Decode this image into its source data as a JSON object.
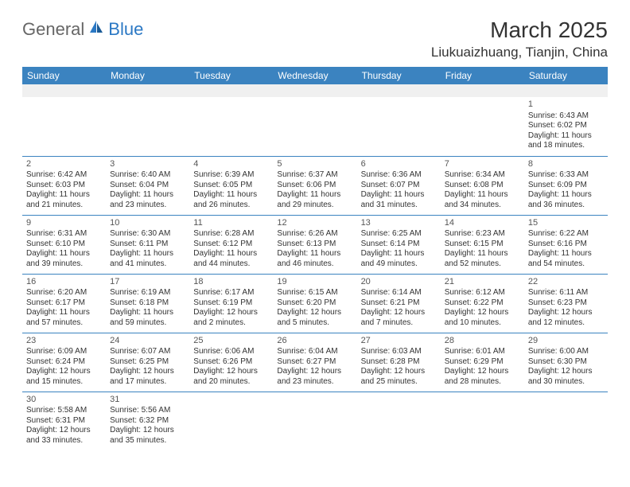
{
  "brand": {
    "part1": "General",
    "part2": "Blue"
  },
  "title": {
    "month": "March 2025",
    "location": "Liukuaizhuang, Tianjin, China"
  },
  "colors": {
    "header_bg": "#3b83c0",
    "header_text": "#ffffff",
    "border": "#3b83c0",
    "blank_bg": "#f0f0f0",
    "text": "#333333",
    "logo_gray": "#666666",
    "logo_blue": "#2b78c4"
  },
  "weekdays": [
    "Sunday",
    "Monday",
    "Tuesday",
    "Wednesday",
    "Thursday",
    "Friday",
    "Saturday"
  ],
  "days": {
    "1": {
      "sunrise": "Sunrise: 6:43 AM",
      "sunset": "Sunset: 6:02 PM",
      "daylight": "Daylight: 11 hours and 18 minutes."
    },
    "2": {
      "sunrise": "Sunrise: 6:42 AM",
      "sunset": "Sunset: 6:03 PM",
      "daylight": "Daylight: 11 hours and 21 minutes."
    },
    "3": {
      "sunrise": "Sunrise: 6:40 AM",
      "sunset": "Sunset: 6:04 PM",
      "daylight": "Daylight: 11 hours and 23 minutes."
    },
    "4": {
      "sunrise": "Sunrise: 6:39 AM",
      "sunset": "Sunset: 6:05 PM",
      "daylight": "Daylight: 11 hours and 26 minutes."
    },
    "5": {
      "sunrise": "Sunrise: 6:37 AM",
      "sunset": "Sunset: 6:06 PM",
      "daylight": "Daylight: 11 hours and 29 minutes."
    },
    "6": {
      "sunrise": "Sunrise: 6:36 AM",
      "sunset": "Sunset: 6:07 PM",
      "daylight": "Daylight: 11 hours and 31 minutes."
    },
    "7": {
      "sunrise": "Sunrise: 6:34 AM",
      "sunset": "Sunset: 6:08 PM",
      "daylight": "Daylight: 11 hours and 34 minutes."
    },
    "8": {
      "sunrise": "Sunrise: 6:33 AM",
      "sunset": "Sunset: 6:09 PM",
      "daylight": "Daylight: 11 hours and 36 minutes."
    },
    "9": {
      "sunrise": "Sunrise: 6:31 AM",
      "sunset": "Sunset: 6:10 PM",
      "daylight": "Daylight: 11 hours and 39 minutes."
    },
    "10": {
      "sunrise": "Sunrise: 6:30 AM",
      "sunset": "Sunset: 6:11 PM",
      "daylight": "Daylight: 11 hours and 41 minutes."
    },
    "11": {
      "sunrise": "Sunrise: 6:28 AM",
      "sunset": "Sunset: 6:12 PM",
      "daylight": "Daylight: 11 hours and 44 minutes."
    },
    "12": {
      "sunrise": "Sunrise: 6:26 AM",
      "sunset": "Sunset: 6:13 PM",
      "daylight": "Daylight: 11 hours and 46 minutes."
    },
    "13": {
      "sunrise": "Sunrise: 6:25 AM",
      "sunset": "Sunset: 6:14 PM",
      "daylight": "Daylight: 11 hours and 49 minutes."
    },
    "14": {
      "sunrise": "Sunrise: 6:23 AM",
      "sunset": "Sunset: 6:15 PM",
      "daylight": "Daylight: 11 hours and 52 minutes."
    },
    "15": {
      "sunrise": "Sunrise: 6:22 AM",
      "sunset": "Sunset: 6:16 PM",
      "daylight": "Daylight: 11 hours and 54 minutes."
    },
    "16": {
      "sunrise": "Sunrise: 6:20 AM",
      "sunset": "Sunset: 6:17 PM",
      "daylight": "Daylight: 11 hours and 57 minutes."
    },
    "17": {
      "sunrise": "Sunrise: 6:19 AM",
      "sunset": "Sunset: 6:18 PM",
      "daylight": "Daylight: 11 hours and 59 minutes."
    },
    "18": {
      "sunrise": "Sunrise: 6:17 AM",
      "sunset": "Sunset: 6:19 PM",
      "daylight": "Daylight: 12 hours and 2 minutes."
    },
    "19": {
      "sunrise": "Sunrise: 6:15 AM",
      "sunset": "Sunset: 6:20 PM",
      "daylight": "Daylight: 12 hours and 5 minutes."
    },
    "20": {
      "sunrise": "Sunrise: 6:14 AM",
      "sunset": "Sunset: 6:21 PM",
      "daylight": "Daylight: 12 hours and 7 minutes."
    },
    "21": {
      "sunrise": "Sunrise: 6:12 AM",
      "sunset": "Sunset: 6:22 PM",
      "daylight": "Daylight: 12 hours and 10 minutes."
    },
    "22": {
      "sunrise": "Sunrise: 6:11 AM",
      "sunset": "Sunset: 6:23 PM",
      "daylight": "Daylight: 12 hours and 12 minutes."
    },
    "23": {
      "sunrise": "Sunrise: 6:09 AM",
      "sunset": "Sunset: 6:24 PM",
      "daylight": "Daylight: 12 hours and 15 minutes."
    },
    "24": {
      "sunrise": "Sunrise: 6:07 AM",
      "sunset": "Sunset: 6:25 PM",
      "daylight": "Daylight: 12 hours and 17 minutes."
    },
    "25": {
      "sunrise": "Sunrise: 6:06 AM",
      "sunset": "Sunset: 6:26 PM",
      "daylight": "Daylight: 12 hours and 20 minutes."
    },
    "26": {
      "sunrise": "Sunrise: 6:04 AM",
      "sunset": "Sunset: 6:27 PM",
      "daylight": "Daylight: 12 hours and 23 minutes."
    },
    "27": {
      "sunrise": "Sunrise: 6:03 AM",
      "sunset": "Sunset: 6:28 PM",
      "daylight": "Daylight: 12 hours and 25 minutes."
    },
    "28": {
      "sunrise": "Sunrise: 6:01 AM",
      "sunset": "Sunset: 6:29 PM",
      "daylight": "Daylight: 12 hours and 28 minutes."
    },
    "29": {
      "sunrise": "Sunrise: 6:00 AM",
      "sunset": "Sunset: 6:30 PM",
      "daylight": "Daylight: 12 hours and 30 minutes."
    },
    "30": {
      "sunrise": "Sunrise: 5:58 AM",
      "sunset": "Sunset: 6:31 PM",
      "daylight": "Daylight: 12 hours and 33 minutes."
    },
    "31": {
      "sunrise": "Sunrise: 5:56 AM",
      "sunset": "Sunset: 6:32 PM",
      "daylight": "Daylight: 12 hours and 35 minutes."
    }
  },
  "layout": {
    "first_weekday_index": 6,
    "num_days": 31,
    "weeks": 6
  },
  "daynums": {
    "1": "1",
    "2": "2",
    "3": "3",
    "4": "4",
    "5": "5",
    "6": "6",
    "7": "7",
    "8": "8",
    "9": "9",
    "10": "10",
    "11": "11",
    "12": "12",
    "13": "13",
    "14": "14",
    "15": "15",
    "16": "16",
    "17": "17",
    "18": "18",
    "19": "19",
    "20": "20",
    "21": "21",
    "22": "22",
    "23": "23",
    "24": "24",
    "25": "25",
    "26": "26",
    "27": "27",
    "28": "28",
    "29": "29",
    "30": "30",
    "31": "31"
  }
}
